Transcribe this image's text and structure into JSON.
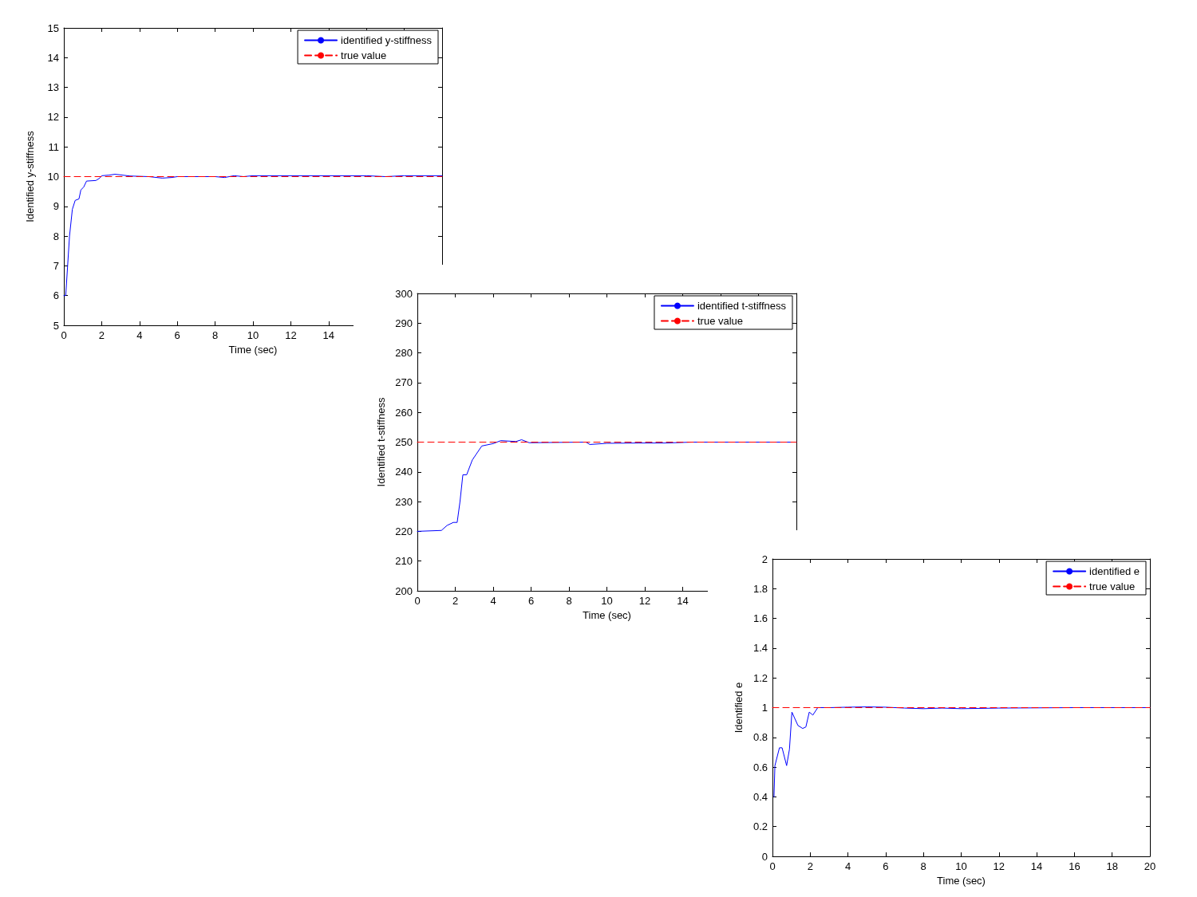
{
  "chart_data": [
    {
      "type": "line",
      "xlabel": "Time (sec)",
      "ylabel": "Identified y-stiffness",
      "xlim": [
        0,
        20
      ],
      "xticks": [
        0,
        2,
        4,
        6,
        8,
        10,
        12,
        14,
        {
          "value": 16,
          "label": null
        },
        {
          "value": 18,
          "label": null
        },
        {
          "value": 20,
          "label": null
        }
      ],
      "ylim": [
        5,
        15
      ],
      "yticks": [
        5,
        6,
        7,
        8,
        9,
        10,
        11,
        12,
        13,
        14,
        15
      ],
      "legend": "top right",
      "marker": "none",
      "series": [
        {
          "name": "identified y-stiffness",
          "color": "#0000ff",
          "line_style": "solid",
          "x": [
            0,
            0.1,
            0.2,
            0.3,
            0.45,
            0.6,
            0.8,
            0.9,
            1.05,
            1.2,
            1.7,
            1.9,
            2.0,
            2.4,
            2.7,
            3.5,
            4.5,
            5.2,
            5.7,
            6,
            8,
            8.5,
            9,
            9.5,
            10,
            16,
            17,
            18,
            20
          ],
          "values": [
            6,
            6,
            7,
            8,
            8.9,
            9.2,
            9.25,
            9.55,
            9.65,
            9.85,
            9.87,
            9.95,
            10.03,
            10.05,
            10.08,
            10.02,
            10,
            9.95,
            9.97,
            10,
            10,
            9.97,
            10.03,
            10,
            10.03,
            10.03,
            10,
            10.03,
            10.03
          ]
        },
        {
          "name": "true value",
          "color": "#ff0000",
          "line_style": "dashed",
          "x": [
            0,
            20
          ],
          "values": [
            10,
            10
          ]
        }
      ]
    },
    {
      "type": "line",
      "xlabel": "Time (sec)",
      "ylabel": "Identified t-stiffness",
      "xlim": [
        0,
        20
      ],
      "xticks": [
        0,
        2,
        4,
        6,
        8,
        10,
        12,
        14,
        {
          "value": 16,
          "label": null
        },
        {
          "value": 18,
          "label": null
        },
        {
          "value": 20,
          "label": null
        }
      ],
      "ylim": [
        200,
        300
      ],
      "yticks": [
        200,
        210,
        220,
        230,
        240,
        250,
        260,
        270,
        280,
        290,
        300
      ],
      "legend": "top right",
      "marker": "none",
      "series": [
        {
          "name": "identified t-stiffness",
          "color": "#0000ff",
          "line_style": "solid",
          "x": [
            0,
            1.27,
            1.57,
            1.9,
            2.1,
            2.25,
            2.4,
            2.6,
            2.9,
            3.4,
            4.0,
            4.4,
            5.2,
            5.5,
            5.9,
            8.9,
            9.1,
            10,
            11.7,
            13.1,
            14.5,
            20
          ],
          "values": [
            220,
            220.3,
            222,
            223,
            223,
            230,
            239,
            239,
            244,
            248.7,
            249.5,
            250.5,
            250.2,
            250.8,
            249.8,
            250,
            249.2,
            249.6,
            249.7,
            249.7,
            250,
            250
          ]
        },
        {
          "name": "true value",
          "color": "#ff0000",
          "line_style": "dashed",
          "x": [
            0,
            20
          ],
          "values": [
            250,
            250
          ]
        }
      ]
    },
    {
      "type": "line",
      "xlabel": "Time (sec)",
      "ylabel": "Identified e",
      "xlim": [
        0,
        20
      ],
      "xticks": [
        0,
        2,
        4,
        6,
        8,
        10,
        12,
        14,
        16,
        18,
        20
      ],
      "ylim": [
        0,
        2
      ],
      "yticks": [
        0,
        0.2,
        0.4,
        0.6,
        0.8,
        1,
        1.2,
        1.4,
        1.6,
        1.8,
        2
      ],
      "legend": "top right",
      "marker": "none",
      "series": [
        {
          "name": "identified e",
          "color": "#0000ff",
          "line_style": "solid",
          "x": [
            0.08,
            0.13,
            0.37,
            0.51,
            0.75,
            0.9,
            1.03,
            1.35,
            1.6,
            1.77,
            1.95,
            2.14,
            2.4,
            3,
            4,
            5,
            6,
            7,
            8,
            9,
            10,
            12,
            16,
            20
          ],
          "values": [
            0.4,
            0.61,
            0.73,
            0.73,
            0.61,
            0.72,
            0.97,
            0.88,
            0.86,
            0.87,
            0.97,
            0.95,
            1,
            1,
            1.003,
            1.005,
            1.003,
            0.997,
            0.993,
            0.997,
            0.993,
            0.997,
            1,
            1
          ]
        },
        {
          "name": "true value",
          "color": "#ff0000",
          "line_style": "dashed",
          "x": [
            0,
            20
          ],
          "values": [
            1,
            1
          ]
        }
      ]
    }
  ]
}
